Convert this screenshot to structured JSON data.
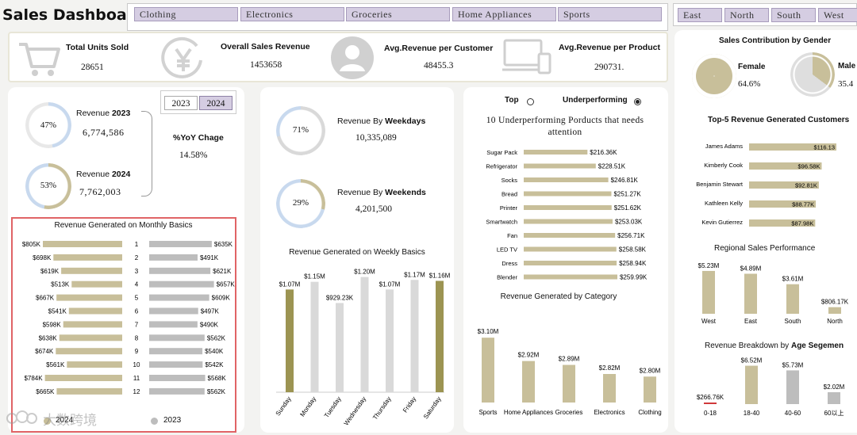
{
  "header": {
    "title": "Sales Dashboard",
    "category_tabs": [
      "Clothing",
      "Electronics",
      "Groceries",
      "Home Appliances",
      "Sports"
    ],
    "region_tabs": [
      "East",
      "North",
      "South",
      "West"
    ]
  },
  "kpis": [
    {
      "label": "Total Units Sold",
      "value": "28651",
      "icon": "cart-icon"
    },
    {
      "label": "Overall Sales Revenue",
      "value": "1453658",
      "icon": "yen-coin-icon"
    },
    {
      "label": "Avg.Revenue per Customer",
      "value": "48455.3",
      "icon": "user-icon"
    },
    {
      "label": "Avg.Revenue per Product",
      "value": "290731.",
      "icon": "devices-icon"
    }
  ],
  "yearly": {
    "years": [
      "2023",
      "2024"
    ],
    "selected_year": "2024",
    "revenue_2023_label_prefix": "Revenue",
    "revenue_2023_year": "2023",
    "revenue_2023": "6,774,586",
    "revenue_2023_pct": "47%",
    "revenue_2023_fraction": 0.47,
    "revenue_2024_label_prefix": "Revenue",
    "revenue_2024_year": "2024",
    "revenue_2024": "7,762,003",
    "revenue_2024_pct": "53%",
    "revenue_2024_fraction": 0.53,
    "yoy_label": "%YoY Chage",
    "yoy_value": "14.58%"
  },
  "weekday": {
    "weekdays_label_prefix": "Revenue By",
    "weekdays_label_bold": "Weekdays",
    "weekdays_value": "10,335,089",
    "weekdays_pct": "71%",
    "weekdays_fraction": 0.71,
    "weekends_label_prefix": "Revenue By",
    "weekends_label_bold": "Weekends",
    "weekends_value": "4,201,500",
    "weekends_pct": "29%",
    "weekends_fraction": 0.29
  },
  "performance": {
    "toggle_top": "Top",
    "toggle_under": "Underperforming",
    "selected": "Underperforming",
    "heading": "10 Underperforming  Porducts that needs attention"
  },
  "gender": {
    "title": "Sales Contribution by Gender",
    "female_label": "Female",
    "female_value": "64.6%",
    "female_fraction": 0.646,
    "male_label": "Male",
    "male_value": "35.4"
  },
  "watermark": "大数跨境",
  "chart_data": [
    {
      "id": "monthly",
      "type": "bar",
      "title": "Revenue Generated on Monthly Basics",
      "categories": [
        "1",
        "2",
        "3",
        "4",
        "5",
        "6",
        "7",
        "8",
        "9",
        "10",
        "11",
        "12"
      ],
      "series": [
        {
          "name": "2024",
          "values": [
            805,
            698,
            619,
            513,
            667,
            541,
            598,
            638,
            674,
            561,
            784,
            665
          ],
          "labels": [
            "$805K",
            "$698K",
            "$619K",
            "$513K",
            "$667K",
            "$541K",
            "$598K",
            "$638K",
            "$674K",
            "$561K",
            "$784K",
            "$665K"
          ],
          "color": "#c8bf9a"
        },
        {
          "name": "2023",
          "values": [
            635,
            491,
            621,
            657,
            609,
            497,
            490,
            562,
            540,
            542,
            568,
            562
          ],
          "labels": [
            "$635K",
            "$491K",
            "$621K",
            "$657K",
            "$609K",
            "$497K",
            "$490K",
            "$562K",
            "$540K",
            "$542K",
            "$568K",
            "$562K"
          ],
          "color": "#bdbdbd"
        }
      ],
      "legend": "bottom"
    },
    {
      "id": "weekly",
      "type": "bar",
      "title": "Revenue Generated on Weekly Basics",
      "categories": [
        "Sunday",
        "Monday",
        "Tuesday",
        "Wednesday",
        "Thursday",
        "Friday",
        "Saturday"
      ],
      "values": [
        1.07,
        1.15,
        0.92923,
        1.2,
        1.07,
        1.17,
        1.16
      ],
      "labels": [
        "$1.07M",
        "$1.15M",
        "$929.23K",
        "$1.20M",
        "$1.07M",
        "$1.17M",
        "$1.16M"
      ],
      "colors": [
        "#9c9452",
        "#d9d9d9",
        "#d9d9d9",
        "#d9d9d9",
        "#d9d9d9",
        "#d9d9d9",
        "#9c9452"
      ],
      "ylim": [
        0,
        1.3
      ]
    },
    {
      "id": "products",
      "type": "bar",
      "orientation": "horizontal",
      "categories": [
        "Sugar Pack",
        "Refrigerator",
        "Socks",
        "Bread",
        "Printer",
        "Smartwatch",
        "Fan",
        "LED TV",
        "Dress",
        "Blender"
      ],
      "values": [
        216.36,
        228.51,
        246.81,
        251.27,
        251.62,
        253.03,
        256.71,
        258.58,
        258.94,
        259.99
      ],
      "labels": [
        "$216.36K",
        "$228.51K",
        "$246.81K",
        "$251.27K",
        "$251.62K",
        "$253.03K",
        "$256.71K",
        "$258.58K",
        "$258.94K",
        "$259.99K"
      ],
      "color": "#c8bf9a"
    },
    {
      "id": "category",
      "type": "bar",
      "title": "Revenue Generated by Category",
      "categories": [
        "Sports",
        "Home Appliances",
        "Groceries",
        "Electronics",
        "Clothing"
      ],
      "values": [
        3.1,
        2.92,
        2.89,
        2.82,
        2.8
      ],
      "labels": [
        "$3.10M",
        "$2.92M",
        "$2.89M",
        "$2.82M",
        "$2.80M"
      ],
      "ylim": [
        2.6,
        3.15
      ],
      "color": "#c8bf9a"
    },
    {
      "id": "customers",
      "type": "bar",
      "orientation": "horizontal",
      "title": "Top-5 Revenue Generated Customers",
      "title_prefix": "Top-5 Revenue Generated",
      "title_bold": "Customers",
      "categories": [
        "James Adams",
        "Kimberly Cook",
        "Benjamin Stewart",
        "Kathleen Kelly",
        "Kevin Gutierrez"
      ],
      "values": [
        116.13,
        96.58,
        92.81,
        88.77,
        87.98
      ],
      "labels": [
        "$116.13",
        "$96.58K",
        "$92.81K",
        "$88.77K",
        "$87.98K"
      ],
      "color": "#c8bf9a"
    },
    {
      "id": "regional",
      "type": "bar",
      "title": "Regional Sales Performance",
      "categories": [
        "West",
        "East",
        "South",
        "North"
      ],
      "values": [
        5.23,
        4.89,
        3.61,
        0.80617
      ],
      "labels": [
        "$5.23M",
        "$4.89M",
        "$3.61M",
        "$806.17K"
      ],
      "ylim": [
        0,
        6
      ],
      "color": "#c8bf9a"
    },
    {
      "id": "age",
      "type": "bar",
      "title": "Revenue Breakdown by Age Segemen",
      "title_prefix": "Revenue Breakdown by",
      "title_bold": "Age Segemen",
      "categories": [
        "0-18",
        "18-40",
        "40-60",
        "60以上"
      ],
      "values": [
        0.26676,
        6.52,
        5.73,
        2.02
      ],
      "labels": [
        "$266.76K",
        "$6.52M",
        "$5.73M",
        "$2.02M"
      ],
      "colors": [
        "#d0393b",
        "#c8bf9a",
        "#bdbdbd",
        "#bdbdbd"
      ],
      "ylim": [
        0,
        7
      ]
    }
  ]
}
